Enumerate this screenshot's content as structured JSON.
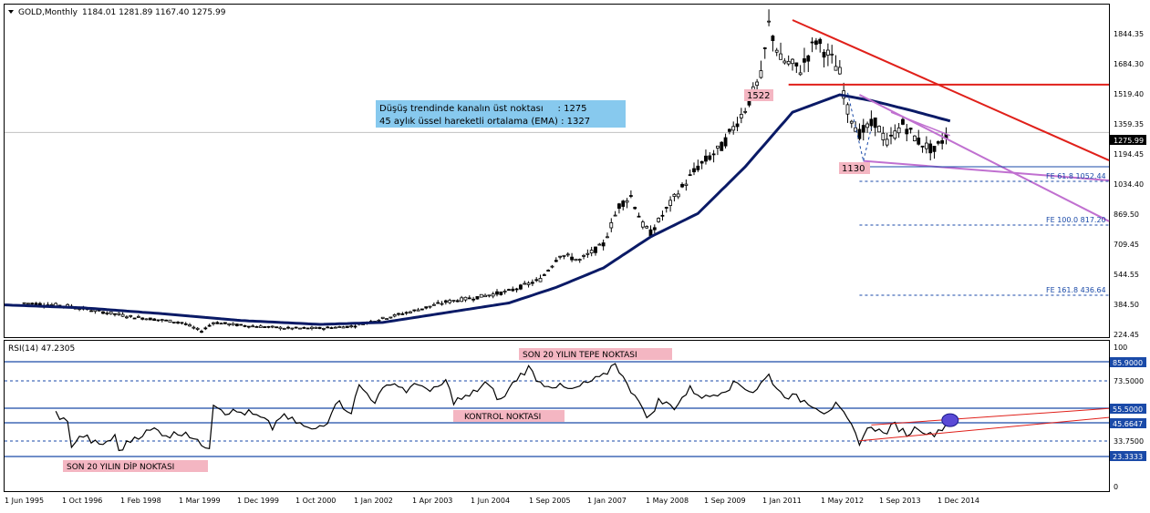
{
  "header": {
    "symbol": "GOLD,Monthly",
    "ohlc": "1184.01 1281.89 1167.40 1275.99"
  },
  "colors": {
    "background": "#ffffff",
    "frame": "#000000",
    "candle": "#000000",
    "ema": "#0a1a66",
    "resistance_line": "#e0201a",
    "channel": "#c070d0",
    "fib_line": "#1a4aa8",
    "fib_text": "#1a4aa8",
    "info_box": "#87c9ee",
    "pink_label": "#f4b6c2",
    "rsi_line": "#000000",
    "rsi_level": "#1a4aa8",
    "current_price_bg": "#000000",
    "rsi_marker": "#5a4ad6"
  },
  "info_box": {
    "line1": "Düşüş trendinde kanalın üst noktası     : 1275",
    "line2": "45 aylık üssel hareketli ortalama (EMA) : 1327"
  },
  "price_labels": {
    "high": "1522",
    "low": "1130",
    "current": "1275.99"
  },
  "fib_labels": [
    "FE 61.8 1052.44",
    "FE 100.0 817.20",
    "FE 161.8 436.64"
  ],
  "price_axis": [
    "1844.35",
    "1684.30",
    "1519.40",
    "1359.35",
    "1194.45",
    "1034.40",
    "869.50",
    "709.45",
    "544.55",
    "384.50",
    "224.45"
  ],
  "rsi": {
    "title": "RSI(14) 47.2305",
    "axis": [
      "100",
      "85.9000",
      "73.5000",
      "55.5000",
      "45.6647",
      "33.7500",
      "23.3333",
      "0"
    ],
    "label_top": "SON 20 YILIN TEPE NOKTASI",
    "label_mid": "KONTROL NOKTASI",
    "label_bottom": "SON 20 YILIN DİP NOKTASI"
  },
  "time_axis": [
    "1 Jun 1995",
    "1 Oct 1996",
    "1 Feb 1998",
    "1 Mar 1999",
    "1 Dec 1999",
    "1 Oct 2000",
    "1 Jan 2002",
    "1 Apr 2003",
    "1 Jun 2004",
    "1 Sep 2005",
    "1 Jan 2007",
    "1 May 2008",
    "1 Sep 2009",
    "1 Jan 2011",
    "1 May 2012",
    "1 Sep 2013",
    "1 Dec 2014"
  ],
  "chart_data": [
    {
      "type": "candlestick",
      "title": "GOLD,Monthly",
      "price_range": [
        224.45,
        1924
      ],
      "price_anchors": [
        {
          "x": 0,
          "y": 385
        },
        {
          "x": 5,
          "y": 400
        },
        {
          "x": 16,
          "y": 385
        },
        {
          "x": 32,
          "y": 330
        },
        {
          "x": 45,
          "y": 300
        },
        {
          "x": 50,
          "y": 255
        },
        {
          "x": 53,
          "y": 300
        },
        {
          "x": 60,
          "y": 285
        },
        {
          "x": 72,
          "y": 270
        },
        {
          "x": 80,
          "y": 270
        },
        {
          "x": 88,
          "y": 280
        },
        {
          "x": 96,
          "y": 320
        },
        {
          "x": 104,
          "y": 360
        },
        {
          "x": 112,
          "y": 405
        },
        {
          "x": 120,
          "y": 430
        },
        {
          "x": 128,
          "y": 460
        },
        {
          "x": 136,
          "y": 520
        },
        {
          "x": 141,
          "y": 650
        },
        {
          "x": 146,
          "y": 620
        },
        {
          "x": 152,
          "y": 700
        },
        {
          "x": 156,
          "y": 900
        },
        {
          "x": 159,
          "y": 950
        },
        {
          "x": 162,
          "y": 800
        },
        {
          "x": 164,
          "y": 760
        },
        {
          "x": 170,
          "y": 940
        },
        {
          "x": 176,
          "y": 1100
        },
        {
          "x": 182,
          "y": 1200
        },
        {
          "x": 188,
          "y": 1400
        },
        {
          "x": 192,
          "y": 1560
        },
        {
          "x": 194,
          "y": 1830
        },
        {
          "x": 197,
          "y": 1650
        },
        {
          "x": 202,
          "y": 1600
        },
        {
          "x": 206,
          "y": 1750
        },
        {
          "x": 210,
          "y": 1650
        },
        {
          "x": 212,
          "y": 1580
        },
        {
          "x": 214,
          "y": 1390
        },
        {
          "x": 217,
          "y": 1270
        },
        {
          "x": 221,
          "y": 1330
        },
        {
          "x": 224,
          "y": 1220
        },
        {
          "x": 228,
          "y": 1320
        },
        {
          "x": 232,
          "y": 1230
        },
        {
          "x": 236,
          "y": 1180
        },
        {
          "x": 239,
          "y": 1260
        }
      ],
      "ema_anchors": [
        {
          "x": 0,
          "y": 390
        },
        {
          "x": 20,
          "y": 375
        },
        {
          "x": 40,
          "y": 345
        },
        {
          "x": 60,
          "y": 310
        },
        {
          "x": 80,
          "y": 290
        },
        {
          "x": 96,
          "y": 300
        },
        {
          "x": 112,
          "y": 350
        },
        {
          "x": 128,
          "y": 400
        },
        {
          "x": 140,
          "y": 480
        },
        {
          "x": 152,
          "y": 580
        },
        {
          "x": 164,
          "y": 740
        },
        {
          "x": 176,
          "y": 860
        },
        {
          "x": 188,
          "y": 1100
        },
        {
          "x": 200,
          "y": 1380
        },
        {
          "x": 212,
          "y": 1470
        },
        {
          "x": 220,
          "y": 1440
        },
        {
          "x": 230,
          "y": 1390
        },
        {
          "x": 240,
          "y": 1335
        }
      ],
      "levels": {
        "high": 1522,
        "low": 1130,
        "current": 1275.99,
        "fe_61_8": 1052.44,
        "fe_100": 817.2,
        "fe_161_8": 436.64
      }
    },
    {
      "type": "line",
      "title": "RSI(14) 47.2305",
      "ylim": [
        0,
        100
      ],
      "levels": [
        85.9,
        73.5,
        55.5,
        45.6647,
        33.75,
        23.3333
      ],
      "anchors": [
        {
          "x": 13,
          "y": 52
        },
        {
          "x": 16,
          "y": 45
        },
        {
          "x": 17,
          "y": 31
        },
        {
          "x": 20,
          "y": 37
        },
        {
          "x": 24,
          "y": 30
        },
        {
          "x": 28,
          "y": 36
        },
        {
          "x": 29,
          "y": 27
        },
        {
          "x": 33,
          "y": 36
        },
        {
          "x": 38,
          "y": 41
        },
        {
          "x": 42,
          "y": 37
        },
        {
          "x": 46,
          "y": 40
        },
        {
          "x": 49,
          "y": 32
        },
        {
          "x": 52,
          "y": 30
        },
        {
          "x": 53,
          "y": 59
        },
        {
          "x": 56,
          "y": 53
        },
        {
          "x": 62,
          "y": 52
        },
        {
          "x": 66,
          "y": 47
        },
        {
          "x": 68,
          "y": 42
        },
        {
          "x": 70,
          "y": 50
        },
        {
          "x": 74,
          "y": 46
        },
        {
          "x": 78,
          "y": 40
        },
        {
          "x": 82,
          "y": 47
        },
        {
          "x": 84,
          "y": 60
        },
        {
          "x": 88,
          "y": 53
        },
        {
          "x": 90,
          "y": 70
        },
        {
          "x": 94,
          "y": 60
        },
        {
          "x": 98,
          "y": 73
        },
        {
          "x": 102,
          "y": 67
        },
        {
          "x": 106,
          "y": 72
        },
        {
          "x": 108,
          "y": 65
        },
        {
          "x": 112,
          "y": 73
        },
        {
          "x": 114,
          "y": 60
        },
        {
          "x": 118,
          "y": 63
        },
        {
          "x": 122,
          "y": 72
        },
        {
          "x": 126,
          "y": 60
        },
        {
          "x": 130,
          "y": 75
        },
        {
          "x": 133,
          "y": 82
        },
        {
          "x": 136,
          "y": 72
        },
        {
          "x": 140,
          "y": 70
        },
        {
          "x": 144,
          "y": 67
        },
        {
          "x": 148,
          "y": 72
        },
        {
          "x": 152,
          "y": 76
        },
        {
          "x": 155,
          "y": 86
        },
        {
          "x": 158,
          "y": 70
        },
        {
          "x": 161,
          "y": 62
        },
        {
          "x": 163,
          "y": 47
        },
        {
          "x": 166,
          "y": 60
        },
        {
          "x": 170,
          "y": 56
        },
        {
          "x": 174,
          "y": 68
        },
        {
          "x": 178,
          "y": 62
        },
        {
          "x": 182,
          "y": 67
        },
        {
          "x": 186,
          "y": 72
        },
        {
          "x": 190,
          "y": 66
        },
        {
          "x": 194,
          "y": 77
        },
        {
          "x": 197,
          "y": 65
        },
        {
          "x": 201,
          "y": 62
        },
        {
          "x": 205,
          "y": 58
        },
        {
          "x": 208,
          "y": 53
        },
        {
          "x": 211,
          "y": 57
        },
        {
          "x": 214,
          "y": 47
        },
        {
          "x": 217,
          "y": 33
        },
        {
          "x": 220,
          "y": 44
        },
        {
          "x": 223,
          "y": 38
        },
        {
          "x": 226,
          "y": 44
        },
        {
          "x": 229,
          "y": 38
        },
        {
          "x": 232,
          "y": 43
        },
        {
          "x": 235,
          "y": 37
        },
        {
          "x": 238,
          "y": 42
        },
        {
          "x": 240,
          "y": 47
        }
      ]
    }
  ]
}
